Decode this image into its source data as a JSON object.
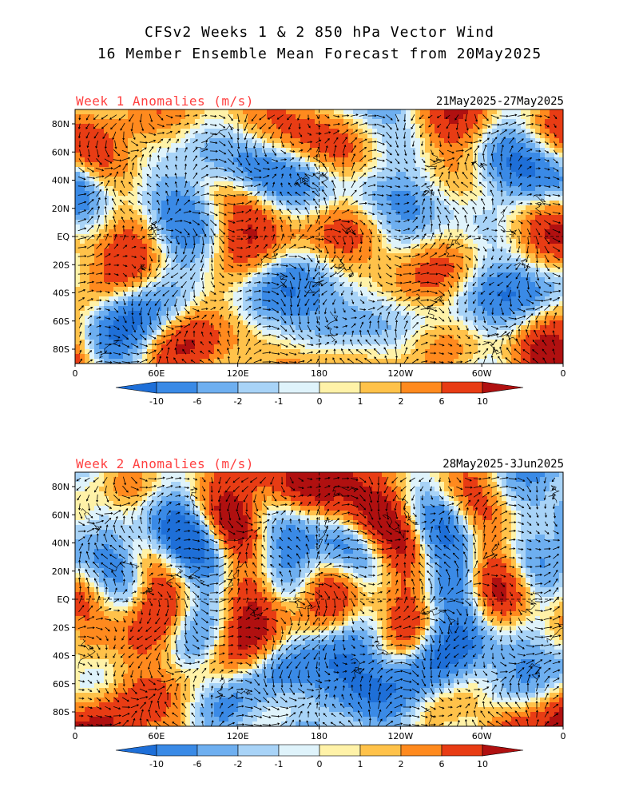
{
  "header": {
    "title_line1": "CFSv2 Weeks 1 & 2 850 hPa Vector Wind",
    "title_line2": "16 Member Ensemble Mean Forecast from 20May2025"
  },
  "panels": [
    {
      "label": "Week 1 Anomalies (m/s)",
      "dates": "21May2025-27May2025"
    },
    {
      "label": "Week 2 Anomalies (m/s)",
      "dates": "28May2025-3Jun2025"
    }
  ],
  "axes": {
    "lat_ticks": [
      "80N",
      "60N",
      "40N",
      "20N",
      "EQ",
      "20S",
      "40S",
      "60S",
      "80S"
    ],
    "lon_ticks": [
      "0",
      "60E",
      "120E",
      "180",
      "120W",
      "60W",
      "0"
    ]
  },
  "colorbar": {
    "labels": [
      "-10",
      "-6",
      "-2",
      "-1",
      "0",
      "1",
      "2",
      "6",
      "10"
    ],
    "colors": [
      "#1e6fd8",
      "#3a8ae6",
      "#6eaff0",
      "#a8d3f7",
      "#dff3fb",
      "#fff2a8",
      "#ffc24a",
      "#ff8a1e",
      "#e83c14",
      "#b01010"
    ]
  }
}
